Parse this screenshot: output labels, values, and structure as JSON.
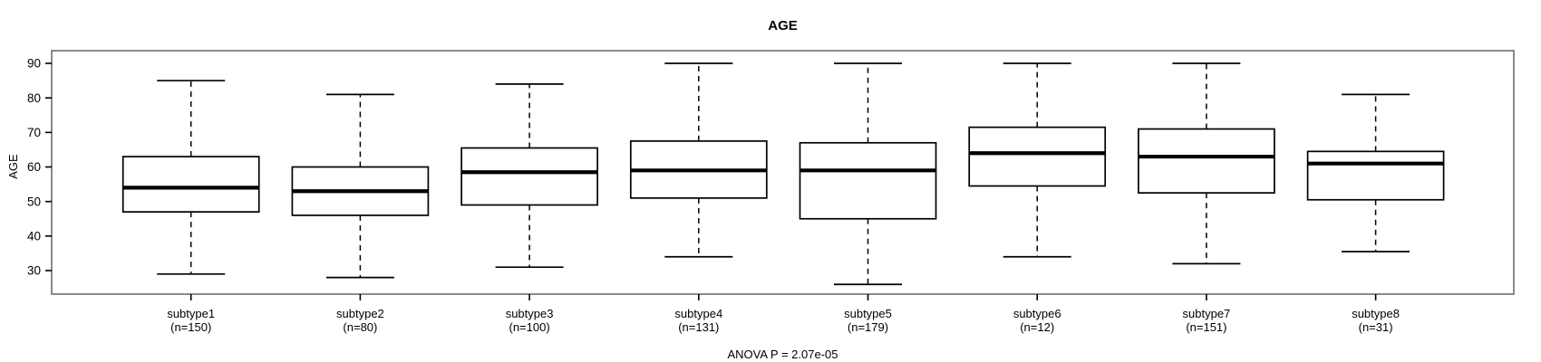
{
  "chart_data": {
    "type": "boxplot",
    "title": "AGE",
    "ylabel": "AGE",
    "xlabel": "",
    "footer": "ANOVA P = 2.07e-05",
    "yticks": [
      30,
      40,
      50,
      60,
      70,
      80,
      90
    ],
    "ylim": [
      22.8,
      93.7
    ],
    "grid": false,
    "legend": "none",
    "categories": [
      "subtype1",
      "subtype2",
      "subtype3",
      "subtype4",
      "subtype5",
      "subtype6",
      "subtype7",
      "subtype8"
    ],
    "series": [
      {
        "name": "subtype1",
        "n": 150,
        "n_label": "(n=150)",
        "whisker_low": 29,
        "q1": 47,
        "median": 54,
        "q3": 63,
        "whisker_high": 85
      },
      {
        "name": "subtype2",
        "n": 80,
        "n_label": "(n=80)",
        "whisker_low": 28,
        "q1": 46,
        "median": 53,
        "q3": 60,
        "whisker_high": 81
      },
      {
        "name": "subtype3",
        "n": 100,
        "n_label": "(n=100)",
        "whisker_low": 31,
        "q1": 49,
        "median": 58.5,
        "q3": 65.5,
        "whisker_high": 84
      },
      {
        "name": "subtype4",
        "n": 131,
        "n_label": "(n=131)",
        "whisker_low": 34,
        "q1": 51,
        "median": 59,
        "q3": 67.5,
        "whisker_high": 90
      },
      {
        "name": "subtype5",
        "n": 179,
        "n_label": "(n=179)",
        "whisker_low": 26,
        "q1": 45,
        "median": 59,
        "q3": 67,
        "whisker_high": 90
      },
      {
        "name": "subtype6",
        "n": 12,
        "n_label": "(n=12)",
        "whisker_low": 34,
        "q1": 54.5,
        "median": 64,
        "q3": 71.5,
        "whisker_high": 90
      },
      {
        "name": "subtype7",
        "n": 151,
        "n_label": "(n=151)",
        "whisker_low": 32,
        "q1": 52.5,
        "median": 63,
        "q3": 71,
        "whisker_high": 90
      },
      {
        "name": "subtype8",
        "n": 31,
        "n_label": "(n=31)",
        "whisker_low": 35.5,
        "q1": 50.5,
        "median": 61,
        "q3": 64.5,
        "whisker_high": 81
      }
    ]
  },
  "colors": {
    "background": "#ffffff",
    "frame_stroke": "#6e6e6e",
    "box_stroke": "#000000",
    "box_fill": "#ffffff",
    "median_stroke": "#000000",
    "whisker_stroke": "#000000",
    "text": "#000000"
  }
}
